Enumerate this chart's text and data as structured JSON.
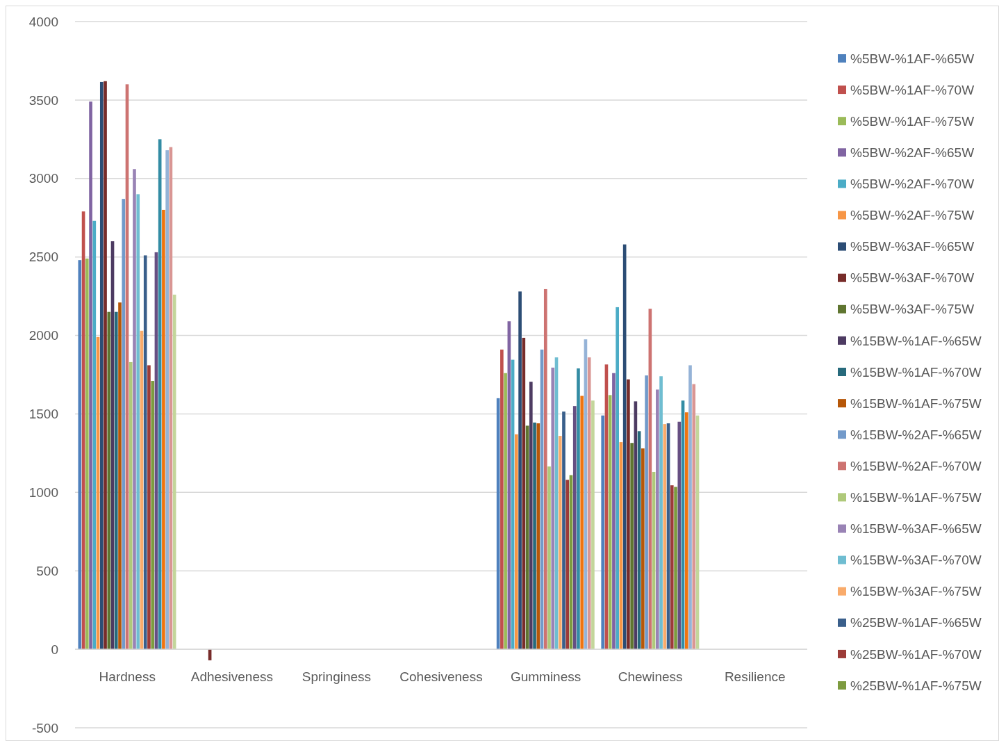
{
  "chart_data": {
    "type": "bar",
    "categories": [
      "Hardness",
      "Adhesiveness",
      "Springiness",
      "Cohesiveness",
      "Gumminess",
      "Chewiness",
      "Resilience"
    ],
    "ylim": [
      -500,
      4000
    ],
    "yticks": [
      -500,
      0,
      500,
      1000,
      1500,
      2000,
      2500,
      3000,
      3500,
      4000
    ],
    "grid": "y",
    "legend": "right",
    "series": [
      {
        "name": "%5BW-%1AF-%65W",
        "color": "#4f81bd",
        "values": [
          2480,
          0,
          0,
          0,
          1600,
          1490,
          0
        ]
      },
      {
        "name": "%5BW-%1AF-%70W",
        "color": "#c0504d",
        "values": [
          2790,
          0,
          0,
          0,
          1910,
          1815,
          0
        ]
      },
      {
        "name": "%5BW-%1AF-%75W",
        "color": "#9bbb59",
        "values": [
          2490,
          0,
          0,
          0,
          1760,
          1620,
          0
        ]
      },
      {
        "name": "%5BW-%2AF-%65W",
        "color": "#8064a2",
        "values": [
          3490,
          0,
          0,
          0,
          2090,
          1760,
          0
        ]
      },
      {
        "name": "%5BW-%2AF-%70W",
        "color": "#4bacc6",
        "values": [
          2730,
          0,
          0,
          0,
          1845,
          2180,
          0
        ]
      },
      {
        "name": "%5BW-%2AF-%75W",
        "color": "#f79646",
        "values": [
          1990,
          0,
          0,
          0,
          1370,
          1320,
          0
        ]
      },
      {
        "name": "%5BW-%3AF-%65W",
        "color": "#2c4d75",
        "values": [
          3615,
          0,
          0,
          0,
          2280,
          2580,
          0
        ]
      },
      {
        "name": "%5BW-%3AF-%70W",
        "color": "#772c2a",
        "values": [
          3620,
          -70,
          0,
          0,
          1985,
          1720,
          0
        ]
      },
      {
        "name": "%5BW-%3AF-%75W",
        "color": "#5f7530",
        "values": [
          2150,
          0,
          0,
          0,
          1425,
          1315,
          0
        ]
      },
      {
        "name": "%15BW-%1AF-%65W",
        "color": "#4d3b62",
        "values": [
          2600,
          0,
          0,
          0,
          1705,
          1580,
          0
        ]
      },
      {
        "name": "%15BW-%1AF-%70W",
        "color": "#276a7c",
        "values": [
          2150,
          0,
          0,
          0,
          1445,
          1390,
          0
        ]
      },
      {
        "name": "%15BW-%1AF-%75W",
        "color": "#b65708",
        "values": [
          2210,
          0,
          0,
          0,
          1440,
          1280,
          0
        ]
      },
      {
        "name": "%15BW-%2AF-%65W",
        "color": "#729aca",
        "values": [
          2870,
          0,
          0,
          0,
          1910,
          1745,
          0
        ]
      },
      {
        "name": "%15BW-%2AF-%70W",
        "color": "#cd7371",
        "values": [
          3600,
          0,
          0,
          0,
          2295,
          2170,
          0
        ]
      },
      {
        "name": "%15BW-%1AF-%75W",
        "color": "#afc97a",
        "values": [
          1830,
          0,
          0,
          0,
          1165,
          1130,
          0
        ]
      },
      {
        "name": "%15BW-%3AF-%65W",
        "color": "#9983b5",
        "values": [
          3060,
          0,
          0,
          0,
          1795,
          1655,
          0
        ]
      },
      {
        "name": "%15BW-%3AF-%70W",
        "color": "#6fbdd1",
        "values": [
          2900,
          0,
          0,
          0,
          1860,
          1740,
          0
        ]
      },
      {
        "name": "%15BW-%3AF-%75W",
        "color": "#f9ab6b",
        "values": [
          2030,
          0,
          0,
          0,
          1360,
          1435,
          0
        ]
      },
      {
        "name": "%25BW-%1AF-%65W",
        "color": "#3a5f8b",
        "values": [
          2510,
          0,
          0,
          0,
          1515,
          1440,
          0
        ]
      },
      {
        "name": "%25BW-%1AF-%70W",
        "color": "#9c3b38",
        "values": [
          1810,
          0,
          0,
          0,
          1080,
          1045,
          0
        ]
      },
      {
        "name": "%25BW-%1AF-%75W",
        "color": "#7d9b3f",
        "values": [
          1710,
          0,
          0,
          0,
          1110,
          1035,
          0
        ]
      },
      {
        "color": "#664f82",
        "values": [
          2530,
          0,
          0,
          0,
          1550,
          1450,
          0
        ]
      },
      {
        "color": "#338ca4",
        "values": [
          3250,
          0,
          0,
          0,
          1790,
          1585,
          0
        ]
      },
      {
        "color": "#ef7410",
        "values": [
          2800,
          0,
          0,
          0,
          1615,
          1510,
          0
        ]
      },
      {
        "color": "#95b3d7",
        "values": [
          3180,
          0,
          0,
          0,
          1975,
          1810,
          0
        ]
      },
      {
        "color": "#d99694",
        "values": [
          3200,
          0,
          0,
          0,
          1860,
          1690,
          0
        ]
      },
      {
        "color": "#c3d69b",
        "values": [
          2260,
          0,
          0,
          0,
          1585,
          1490,
          0
        ]
      }
    ]
  }
}
